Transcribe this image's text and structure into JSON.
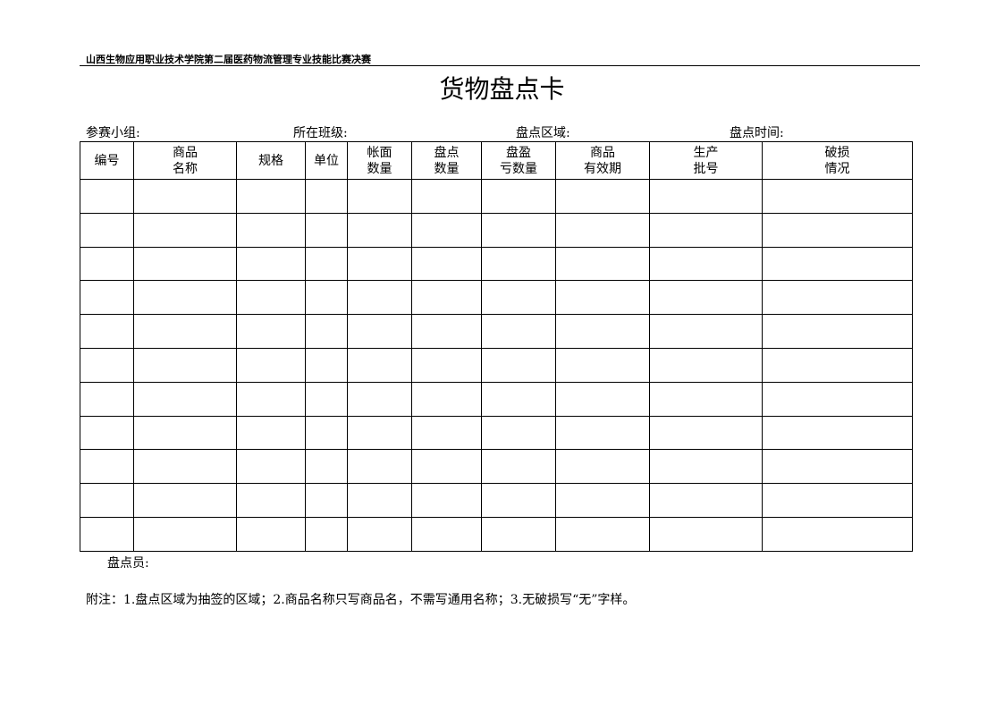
{
  "header": {
    "organization": "山西生物应用职业技术学院第二届医药物流管理专业技能比赛决赛",
    "title": "货物盘点卡"
  },
  "fields": [
    {
      "label": "参赛小组:"
    },
    {
      "label": "所在班级:"
    },
    {
      "label": "盘点区域:"
    },
    {
      "label": "盘点时间:"
    }
  ],
  "table": {
    "columns": [
      {
        "line1": "编号",
        "line2": ""
      },
      {
        "line1": "商品",
        "line2": "名称"
      },
      {
        "line1": "规格",
        "line2": ""
      },
      {
        "line1": "单位",
        "line2": ""
      },
      {
        "line1": "帐面",
        "line2": "数量"
      },
      {
        "line1": "盘点",
        "line2": "数量"
      },
      {
        "line1": "盘盈",
        "line2": "亏数量"
      },
      {
        "line1": "商品",
        "line2": "有效期"
      },
      {
        "line1": "生产",
        "line2": "批号"
      },
      {
        "line1": "破损",
        "line2": "情况"
      }
    ],
    "empty_rows": 11
  },
  "footer": {
    "inspector_label": "盘点员:",
    "note": "附注：1.盘点区域为抽签的区域；2.商品名称只写商品名，不需写通用名称；3.无破损写“无”字样。"
  }
}
